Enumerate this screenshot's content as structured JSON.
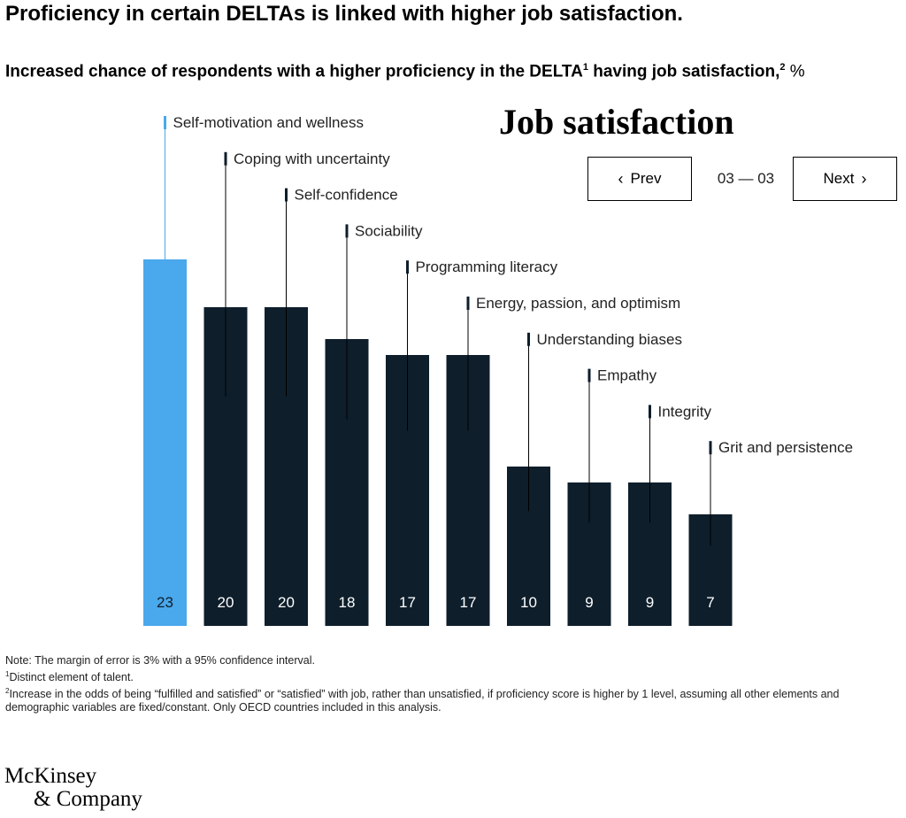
{
  "header": {
    "headline": "Proficiency in certain DELTAs is linked with higher job satisfaction.",
    "subtitle_main": "Increased chance of respondents with a higher proficiency in the DELTA",
    "subtitle_sup1": "1",
    "subtitle_tail": " having job satisfaction,",
    "subtitle_sup2": "2",
    "subtitle_unit": " %"
  },
  "panel": {
    "title": "Job satisfaction",
    "prev_label": "Prev",
    "next_label": "Next",
    "pager": "03 — 03"
  },
  "colors": {
    "highlight": "#4aa8ec",
    "bar": "#0e1e2b",
    "label_on_highlight": "#0e1e2b",
    "label_on_bar": "#ffffff",
    "leader_line": "#000000"
  },
  "chart_data": {
    "type": "bar",
    "title": "Job satisfaction",
    "categories": [
      "Self-motivation and wellness",
      "Coping with uncertainty",
      "Self-confidence",
      "Sociability",
      "Programming literacy",
      "Energy, passion, and optimism",
      "Understanding biases",
      "Empathy",
      "Integrity",
      "Grit and persistence"
    ],
    "values": [
      23,
      20,
      20,
      18,
      17,
      17,
      10,
      9,
      9,
      7
    ],
    "highlighted_category": "Self-motivation and wellness",
    "ylim": [
      0,
      23
    ],
    "grid": false,
    "legend": "none"
  },
  "notes": {
    "note": "Note: The margin of error is 3% with a 95% confidence interval.",
    "fn1_mark": "1",
    "fn1": "Distinct element of talent.",
    "fn2_mark": "2",
    "fn2": "Increase in the odds of being “fulfilled and satisfied” or “satisfied” with job, rather than unsatisfied, if proficiency score is higher by 1 level, assuming all other elements and demographic variables are fixed/constant.  Only OECD countries included in this analysis."
  },
  "logo": {
    "line1": "McKinsey",
    "line2": "& Company"
  }
}
